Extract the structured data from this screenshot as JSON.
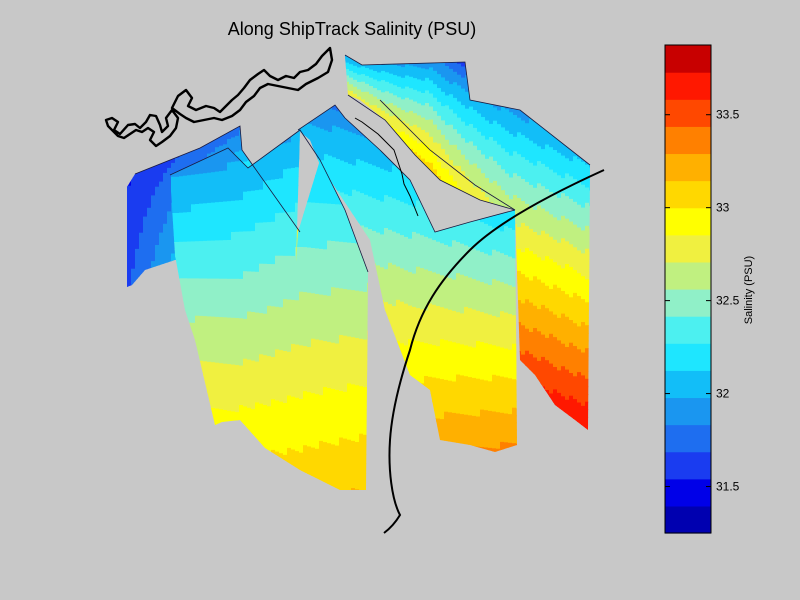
{
  "chart_data": {
    "type": "heatmap",
    "title": "Along ShipTrack Salinity (PSU)",
    "colorbar": {
      "label": "Salinity (PSU)",
      "range": [
        31.25,
        33.875
      ],
      "ticks": [
        {
          "value": 31.5,
          "label": "31.5"
        },
        {
          "value": 32,
          "label": "32"
        },
        {
          "value": 32.5,
          "label": "32.5"
        },
        {
          "value": 33,
          "label": "33"
        },
        {
          "value": 33.5,
          "label": "33.5"
        }
      ],
      "colors": [
        "#0000b0",
        "#0000e8",
        "#1a3cf0",
        "#1e6ef0",
        "#1a96f0",
        "#12bef8",
        "#1ee6ff",
        "#4cf0f0",
        "#90f0c8",
        "#c0f080",
        "#f0f040",
        "#ffff00",
        "#ffd800",
        "#ffb000",
        "#ff8000",
        "#ff4800",
        "#ff1800",
        "#c80000"
      ]
    },
    "sections": [
      {
        "name": "track-segment-1",
        "top": [
          31.5,
          31.65,
          31.7,
          31.75
        ],
        "bottom": [
          31.7,
          32.2,
          32.95,
          33.1
        ]
      },
      {
        "name": "track-segment-2",
        "top": [
          31.85,
          31.9,
          32.0,
          32.0
        ],
        "bottom": [
          33.0,
          33.0,
          33.1,
          33.2
        ]
      },
      {
        "name": "track-segment-3",
        "top": [
          31.8,
          31.9,
          32.0
        ],
        "bottom": [
          33.1,
          33.3,
          33.4
        ]
      },
      {
        "name": "track-segment-4",
        "top": [
          31.4,
          31.6,
          31.8,
          31.95
        ],
        "bottom": [
          33.3,
          33.45,
          33.6,
          33.8
        ]
      }
    ]
  },
  "colors": {
    "background": "#c8c8c8",
    "coastline": "#000000",
    "trackline": "#000000"
  }
}
